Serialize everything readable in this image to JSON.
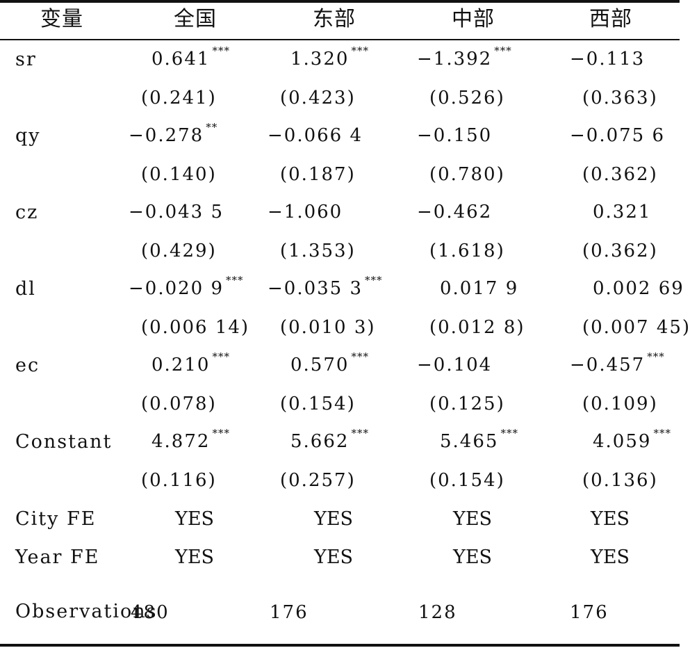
{
  "table": {
    "headers": [
      "变量",
      "全国",
      "东部",
      "中部",
      "西部"
    ],
    "rows": [
      {
        "label": "sr",
        "coef": [
          {
            "v": "0.641",
            "s": "***"
          },
          {
            "v": "1.320",
            "s": "***"
          },
          {
            "v": "−1.392",
            "s": "***"
          },
          {
            "v": "−0.113",
            "s": ""
          }
        ],
        "se": [
          "(0.241)",
          "(0.423)",
          "(0.526)",
          "(0.363)"
        ]
      },
      {
        "label": "qy",
        "coef": [
          {
            "v": "−0.278",
            "s": "**"
          },
          {
            "v": "−0.066 4",
            "s": ""
          },
          {
            "v": "−0.150",
            "s": ""
          },
          {
            "v": "−0.075 6",
            "s": ""
          }
        ],
        "se": [
          "(0.140)",
          "(0.187)",
          "(0.780)",
          "(0.362)"
        ]
      },
      {
        "label": "cz",
        "coef": [
          {
            "v": "−0.043 5",
            "s": ""
          },
          {
            "v": "−1.060",
            "s": ""
          },
          {
            "v": "−0.462",
            "s": ""
          },
          {
            "v": "0.321",
            "s": ""
          }
        ],
        "se": [
          "(0.429)",
          "(1.353)",
          "(1.618)",
          "(0.362)"
        ]
      },
      {
        "label": "dl",
        "coef": [
          {
            "v": "−0.020 9",
            "s": "***"
          },
          {
            "v": "−0.035 3",
            "s": "***"
          },
          {
            "v": "0.017 9",
            "s": ""
          },
          {
            "v": "0.002 69",
            "s": ""
          }
        ],
        "se": [
          "(0.006 14)",
          "(0.010 3)",
          "(0.012 8)",
          "(0.007 45)"
        ]
      },
      {
        "label": "ec",
        "coef": [
          {
            "v": "0.210",
            "s": "***"
          },
          {
            "v": "0.570",
            "s": "***"
          },
          {
            "v": "−0.104",
            "s": ""
          },
          {
            "v": "−0.457",
            "s": "***"
          }
        ],
        "se": [
          "(0.078)",
          "(0.154)",
          "(0.125)",
          "(0.109)"
        ]
      },
      {
        "label": "Constant",
        "coef": [
          {
            "v": "4.872",
            "s": "***"
          },
          {
            "v": "5.662",
            "s": "***"
          },
          {
            "v": "5.465",
            "s": "***"
          },
          {
            "v": "4.059",
            "s": "***"
          }
        ],
        "se": [
          "(0.116)",
          "(0.257)",
          "(0.154)",
          "(0.136)"
        ]
      }
    ],
    "fe": [
      {
        "label": "City FE",
        "vals": [
          "YES",
          "YES",
          "YES",
          "YES"
        ]
      },
      {
        "label": "Year FE",
        "vals": [
          "YES",
          "YES",
          "YES",
          "YES"
        ]
      }
    ],
    "obs": {
      "label": "Observations",
      "vals": [
        "480",
        "176",
        "128",
        "176"
      ]
    }
  }
}
